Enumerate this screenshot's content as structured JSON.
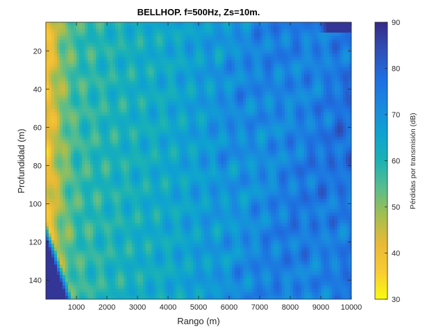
{
  "chart_data": {
    "type": "heatmap",
    "title": "BELLHOP. f=500Hz, Zs=10m.",
    "xlabel": "Rango (m)",
    "ylabel": "Profundidad (m)",
    "xlim": [
      0,
      10000
    ],
    "ylim": [
      5,
      150
    ],
    "y_reversed": true,
    "x_ticks": [
      1000,
      2000,
      3000,
      4000,
      5000,
      6000,
      7000,
      8000,
      9000,
      10000
    ],
    "y_ticks": [
      20,
      40,
      60,
      80,
      100,
      120,
      140
    ],
    "colorbar": {
      "label": "Pérdidas por transmisión (dB)",
      "range": [
        30,
        90
      ],
      "ticks": [
        30,
        40,
        50,
        60,
        70,
        80,
        90
      ],
      "colormap": "parula",
      "reversed": true
    },
    "approx_loss_by_range": [
      {
        "range": 100,
        "loss_db": 45
      },
      {
        "range": 1000,
        "loss_db": 57
      },
      {
        "range": 2000,
        "loss_db": 60
      },
      {
        "range": 3000,
        "loss_db": 62
      },
      {
        "range": 4000,
        "loss_db": 64
      },
      {
        "range": 5000,
        "loss_db": 67
      },
      {
        "range": 6000,
        "loss_db": 70
      },
      {
        "range": 7000,
        "loss_db": 72
      },
      {
        "range": 8000,
        "loss_db": 74
      },
      {
        "range": 9000,
        "loss_db": 75
      },
      {
        "range": 10000,
        "loss_db": 77
      }
    ],
    "shadow_regions": [
      {
        "description": "bottom-left shadow",
        "loss_db": 88
      },
      {
        "description": "top-right shadow",
        "loss_db": 88
      }
    ],
    "colors": {
      "low_loss": "#f9fb0e",
      "high_loss": "#352a87"
    }
  }
}
